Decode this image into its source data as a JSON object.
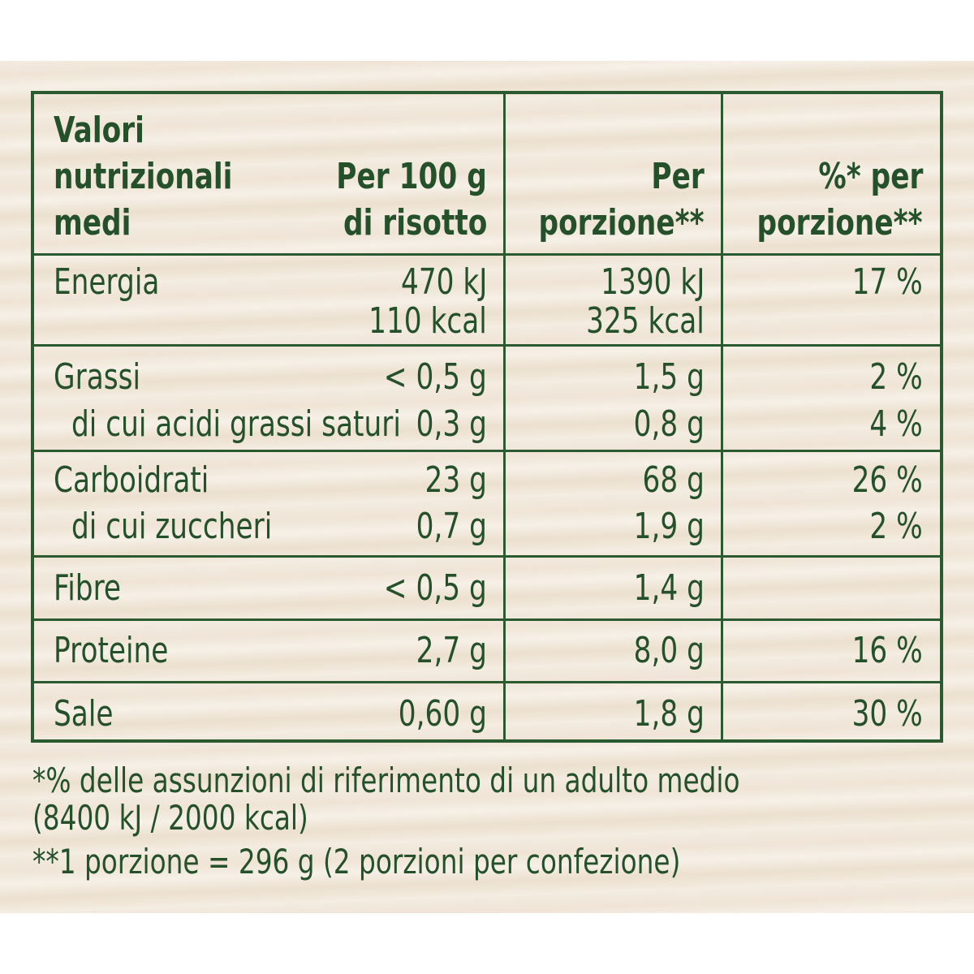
{
  "table": {
    "header": [
      [
        "Valori",
        "nutrizionali",
        "medi"
      ],
      [
        "Per 100 g",
        "di risotto"
      ],
      [
        "Per",
        "porzione**"
      ],
      [
        "%* per",
        "porzione**"
      ]
    ],
    "groups": [
      [
        [
          "Energia",
          "470 kJ",
          "1390 kJ",
          "17 %"
        ],
        [
          null,
          "110 kcal",
          "325 kcal",
          null
        ]
      ],
      [
        [
          "Grassi",
          "< 0,5 g",
          "1,5 g",
          "2 %"
        ],
        [
          "di cui acidi grassi saturi",
          "0,3 g",
          "0,8 g",
          "4 %"
        ]
      ],
      [
        [
          "Carboidrati",
          "23 g",
          "68 g",
          "26 %"
        ],
        [
          "di cui zuccheri",
          "0,7 g",
          "1,9 g",
          "2 %"
        ]
      ],
      [
        [
          "Fibre",
          "< 0,5 g",
          "1,4 g",
          null
        ]
      ],
      [
        [
          "Proteine",
          "2,7 g",
          "8,0 g",
          "16 %"
        ]
      ],
      [
        [
          "Sale",
          "0,60 g",
          "1,8 g",
          "30 %"
        ]
      ]
    ]
  },
  "footnotes": [
    "*% delle assunzioni di riferimento di un adulto medio",
    "(8400 kJ / 2000 kcal)",
    "**1 porzione = 296 g (2 porzioni per confezione)"
  ]
}
